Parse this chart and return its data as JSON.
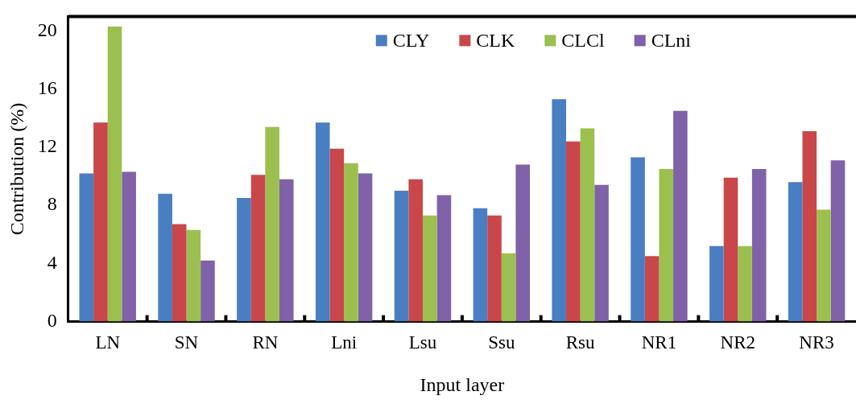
{
  "chart_data": {
    "type": "bar",
    "xlabel": "Input layer",
    "ylabel": "Contribution (%)",
    "categories": [
      "LN",
      "SN",
      "RN",
      "Lni",
      "Lsu",
      "Ssu",
      "Rsu",
      "NR1",
      "NR2",
      "NR3"
    ],
    "series": [
      {
        "name": "CLY",
        "color": "#4a7ec2",
        "values": [
          10.2,
          8.8,
          8.5,
          13.7,
          9.0,
          7.8,
          15.3,
          11.3,
          5.2,
          9.6
        ]
      },
      {
        "name": "CLK",
        "color": "#c9474a",
        "values": [
          13.7,
          6.7,
          10.1,
          11.9,
          9.8,
          7.3,
          12.4,
          4.5,
          9.9,
          13.1
        ]
      },
      {
        "name": "CLCl",
        "color": "#9bc04f",
        "values": [
          20.3,
          6.3,
          13.4,
          10.9,
          7.3,
          4.7,
          13.3,
          10.5,
          5.2,
          7.7
        ]
      },
      {
        "name": "CLni",
        "color": "#7f62a8",
        "values": [
          10.3,
          4.2,
          9.8,
          10.2,
          8.7,
          10.8,
          9.4,
          14.5,
          10.5,
          11.1
        ]
      }
    ],
    "ylim": [
      0,
      21
    ],
    "yticks": [
      0,
      4,
      8,
      12,
      16,
      20
    ],
    "grid": false,
    "legend": "top"
  }
}
